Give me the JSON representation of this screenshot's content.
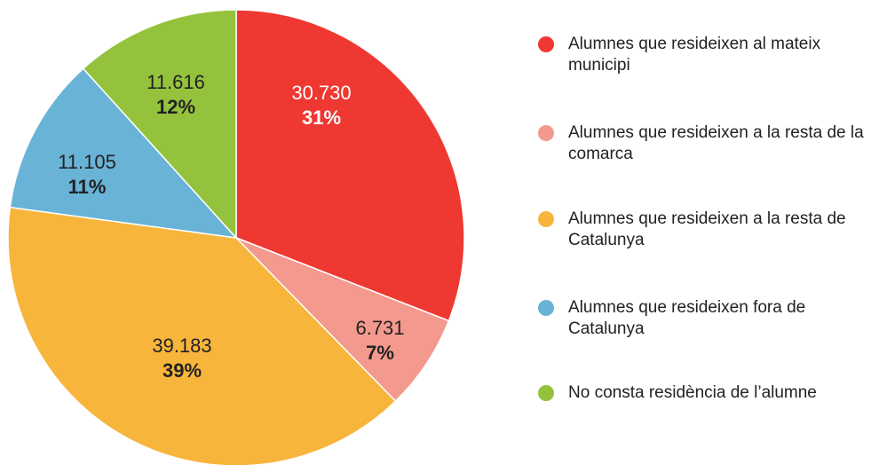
{
  "chart_data": {
    "type": "pie",
    "categories": [
      "Alumnes que resideixen al mateix municipi",
      "Alumnes que resideixen a la resta de la comarca",
      "Alumnes que resideixen a la resta de Catalunya",
      "Alumnes que resideixen fora de Catalunya",
      "No consta residència de l’alumne"
    ],
    "values": [
      30730,
      6731,
      39183,
      11105,
      11616
    ],
    "value_labels": [
      "30.730",
      "6.731",
      "39.183",
      "11.105",
      "11.616"
    ],
    "percent_labels": [
      "31%",
      "7%",
      "39%",
      "11%",
      "12%"
    ],
    "colors": [
      "#ee3831",
      "#f4998d",
      "#f8b53c",
      "#69b3d6",
      "#95c23d"
    ],
    "legend": "right"
  }
}
